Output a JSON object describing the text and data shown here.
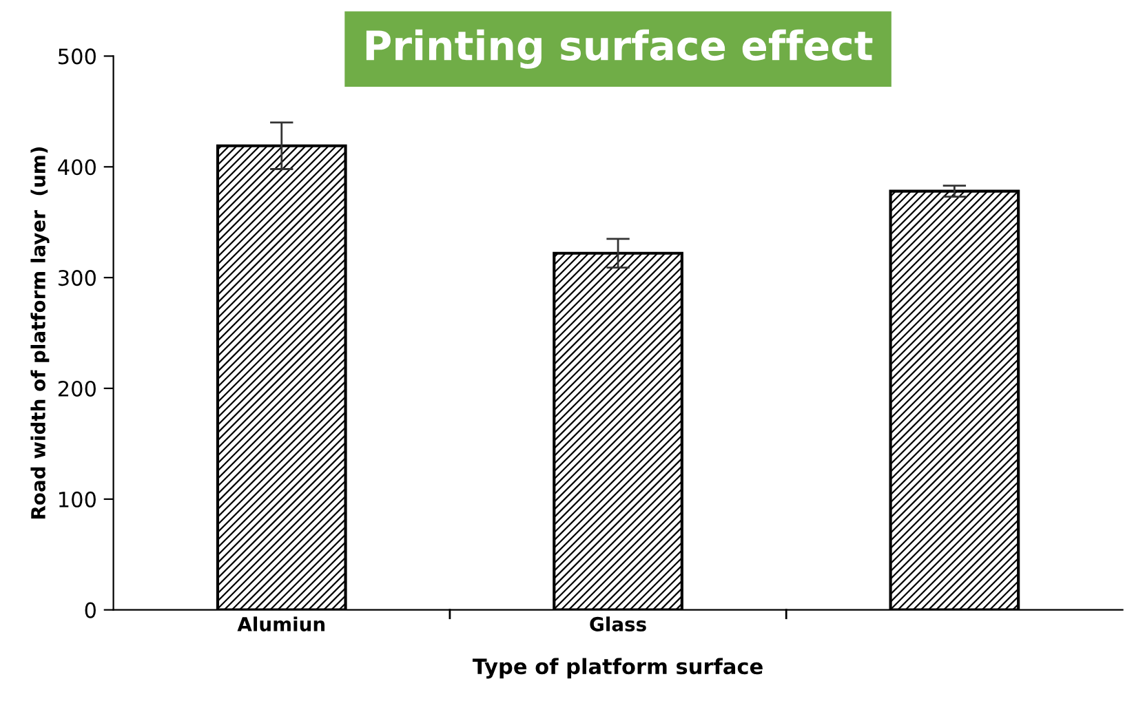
{
  "chart_data": {
    "type": "bar",
    "title": "Printing surface effect",
    "xlabel": "Type of platform surface",
    "ylabel": "Road width of platform layer  (um)",
    "categories": [
      "Alumiun",
      "Glass",
      null
    ],
    "values": [
      419,
      322,
      378
    ],
    "errors": [
      21,
      13,
      5
    ],
    "color": "#000000",
    "ylim": [
      0,
      500
    ],
    "yticks": [
      0,
      100,
      200,
      300,
      400,
      500
    ],
    "grid": false,
    "legend": false
  }
}
